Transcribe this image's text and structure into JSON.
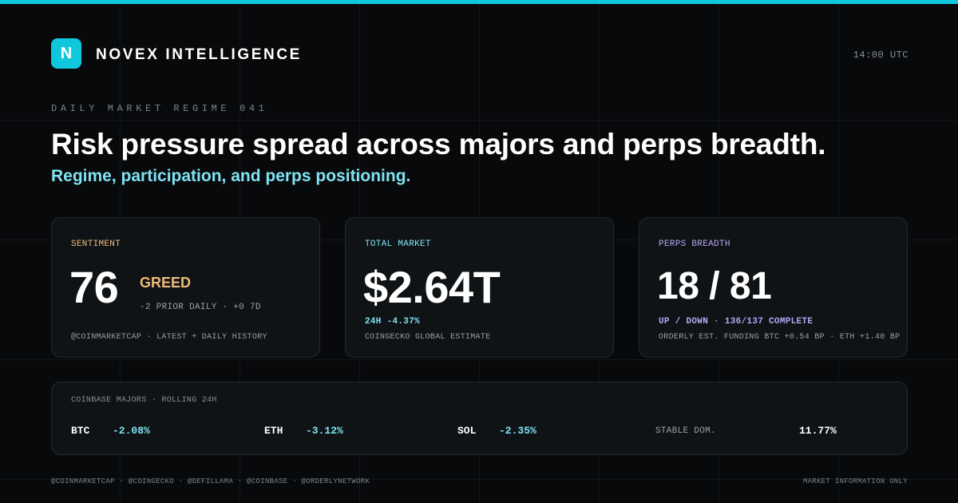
{
  "header": {
    "logo_letter": "N",
    "brand": "NOVEX INTELLIGENCE",
    "time": "14:00 UTC"
  },
  "hero": {
    "kicker": "DAILY MARKET REGIME 041",
    "headline": "Risk pressure spread across majors and perps breadth.",
    "subhead": "Regime, participation, and perps positioning."
  },
  "cards": {
    "sentiment": {
      "label": "SENTIMENT",
      "value": "76",
      "state": "GREED",
      "change": "-2 PRIOR DAILY · +0 7D",
      "source": "@COINMARKETCAP · LATEST + DAILY HISTORY"
    },
    "market": {
      "label": "TOTAL MARKET",
      "value": "$2.64T",
      "change": "24H -4.37%",
      "source": "COINGECKO GLOBAL ESTIMATE"
    },
    "perps": {
      "label": "PERPS BREADTH",
      "value": "18 / 81",
      "detail": "UP / DOWN · 136/137 COMPLETE",
      "source": "ORDERLY EST. FUNDING BTC +0.54 BP · ETH +1.40 BP"
    }
  },
  "majors": {
    "label": "COINBASE MAJORS · ROLLING 24H",
    "items": [
      {
        "symbol": "BTC",
        "change": "-2.08%"
      },
      {
        "symbol": "ETH",
        "change": "-3.12%"
      },
      {
        "symbol": "SOL",
        "change": "-2.35%"
      }
    ],
    "stable_label": "STABLE DOM.",
    "stable_value": "11.77%"
  },
  "footer": {
    "sources": "@COINMARKETCAP · @COINGECKO · @DEFILLAMA · @COINBASE · @ORDERLYNETWORK",
    "disclaimer": "MARKET INFORMATION ONLY"
  },
  "colors": {
    "accent": "#10c8de",
    "greed": "#f0bb78",
    "market": "#7fe3f2",
    "perps": "#b7a6f5",
    "background": "#08090b"
  }
}
